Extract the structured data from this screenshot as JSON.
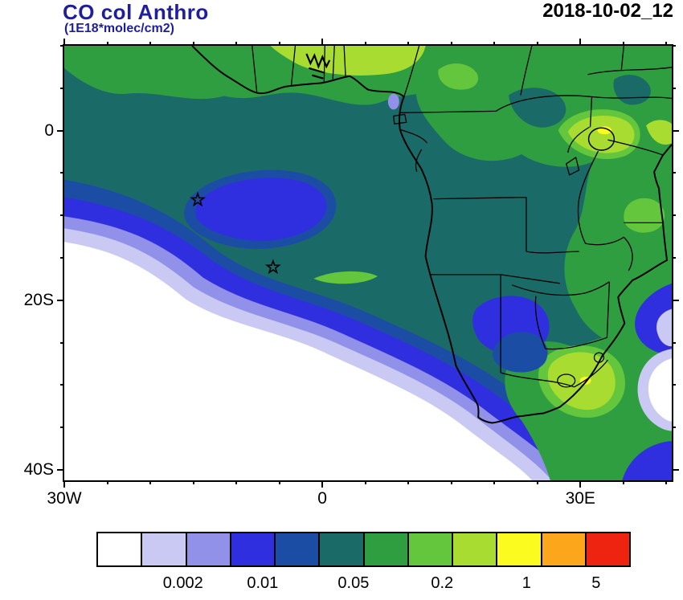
{
  "header": {
    "title": "CO col Anthro",
    "subtitle": "(1E18*molec/cm2)",
    "date": "2018-10-02_12",
    "title_color": "#1f1f9c"
  },
  "chart_data": {
    "type": "heatmap",
    "title": "CO col Anthro",
    "units": "1E18*molec/cm2",
    "timestamp": "2018-10-02_12",
    "extent": {
      "lon_min": -30,
      "lon_max": 41,
      "lat_max": 10,
      "lat_min": -41.6
    },
    "x_axis": {
      "tick_step_deg": 5,
      "major": [
        {
          "label": "30W",
          "lon": -30
        },
        {
          "label": "0",
          "lon": 0
        },
        {
          "label": "30E",
          "lon": 30
        }
      ]
    },
    "y_axis": {
      "tick_step_deg": 5,
      "major": [
        {
          "label": "0",
          "lat": 0
        },
        {
          "label": "20S",
          "lat": -20
        },
        {
          "label": "40S",
          "lat": -40
        }
      ]
    },
    "colorbar": {
      "colors": [
        "#ffffff",
        "#c9c9f4",
        "#9191ea",
        "#2f2fe0",
        "#1c4da4",
        "#1a6b68",
        "#2e9e40",
        "#63c63c",
        "#a9dc30",
        "#fbfb1f",
        "#fca61b",
        "#ef2410"
      ],
      "labels": [
        {
          "text": "0.002",
          "pct": 16.2
        },
        {
          "text": "0.01",
          "pct": 31.1
        },
        {
          "text": "0.05",
          "pct": 48.1
        },
        {
          "text": "0.2",
          "pct": 64.7
        },
        {
          "text": "1",
          "pct": 80.5
        },
        {
          "text": "5",
          "pct": 93.5
        }
      ]
    },
    "markers": [
      {
        "type": "star",
        "lon": -14.4,
        "lat": -8.3
      },
      {
        "type": "star",
        "lon": -5.6,
        "lat": -16.3
      }
    ]
  }
}
